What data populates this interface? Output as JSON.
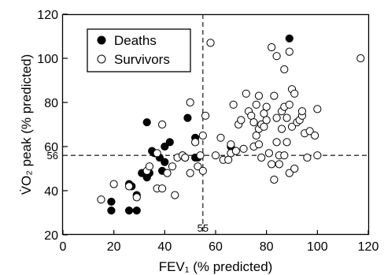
{
  "chart_data": {
    "type": "scatter",
    "title": "",
    "xlabel": "FEV₁ (% predicted)",
    "ylabel": "V̇O₂ peak (% predicted)",
    "xlim": [
      0,
      120
    ],
    "ylim": [
      20,
      120
    ],
    "xticks": [
      "0",
      "20",
      "40",
      "60",
      "80",
      "100",
      "120"
    ],
    "yticks": [
      "20",
      "40",
      "60",
      "80",
      "100",
      "120"
    ],
    "grid": false,
    "legend": "top-left",
    "reference_lines": {
      "vertical": {
        "x": 55,
        "label": "55"
      },
      "horizontal": {
        "y": 56,
        "label": "56"
      }
    },
    "series": [
      {
        "name": "Deaths",
        "marker": "filled-circle",
        "color": "#000000",
        "points": [
          [
            19,
            31
          ],
          [
            19,
            35
          ],
          [
            26,
            31
          ],
          [
            26,
            43
          ],
          [
            27,
            42
          ],
          [
            29,
            31
          ],
          [
            29,
            38
          ],
          [
            31,
            48
          ],
          [
            33,
            46
          ],
          [
            34,
            48
          ],
          [
            33,
            71
          ],
          [
            35,
            58
          ],
          [
            36,
            57
          ],
          [
            38,
            55
          ],
          [
            39,
            49
          ],
          [
            40,
            53
          ],
          [
            40,
            60
          ],
          [
            42,
            62
          ],
          [
            47,
            56
          ],
          [
            48,
            55
          ],
          [
            49,
            73
          ],
          [
            52,
            55
          ],
          [
            52,
            64
          ],
          [
            53,
            55
          ],
          [
            66,
            60
          ],
          [
            89,
            109
          ]
        ]
      },
      {
        "name": "Survivors",
        "marker": "open-circle",
        "color": "#000000",
        "points": [
          [
            15,
            36
          ],
          [
            20,
            43
          ],
          [
            26,
            42
          ],
          [
            29,
            37
          ],
          [
            33,
            49
          ],
          [
            34,
            51
          ],
          [
            37,
            57
          ],
          [
            37,
            41
          ],
          [
            39,
            41
          ],
          [
            39,
            70
          ],
          [
            41,
            48
          ],
          [
            43,
            51
          ],
          [
            44,
            38
          ],
          [
            45,
            55
          ],
          [
            47,
            56
          ],
          [
            48,
            55
          ],
          [
            50,
            48
          ],
          [
            50,
            80
          ],
          [
            52,
            62
          ],
          [
            53,
            51
          ],
          [
            54,
            56
          ],
          [
            55,
            49
          ],
          [
            55,
            65
          ],
          [
            56,
            74
          ],
          [
            58,
            107
          ],
          [
            60,
            56
          ],
          [
            62,
            64
          ],
          [
            63,
            54
          ],
          [
            65,
            54
          ],
          [
            66,
            57
          ],
          [
            66,
            61
          ],
          [
            67,
            79
          ],
          [
            68,
            58
          ],
          [
            69,
            70
          ],
          [
            70,
            72
          ],
          [
            71,
            59
          ],
          [
            72,
            84
          ],
          [
            73,
            76
          ],
          [
            74,
            74
          ],
          [
            75,
            60
          ],
          [
            75,
            71
          ],
          [
            76,
            65
          ],
          [
            76,
            79
          ],
          [
            77,
            61
          ],
          [
            77,
            68
          ],
          [
            77,
            83
          ],
          [
            78,
            70
          ],
          [
            78,
            55
          ],
          [
            79,
            69
          ],
          [
            79,
            75
          ],
          [
            80,
            72
          ],
          [
            80,
            78
          ],
          [
            81,
            57
          ],
          [
            82,
            52
          ],
          [
            82,
            105
          ],
          [
            83,
            45
          ],
          [
            83,
            83
          ],
          [
            84,
            62
          ],
          [
            84,
            101
          ],
          [
            84,
            73
          ],
          [
            85,
            52
          ],
          [
            85,
            56
          ],
          [
            86,
            68
          ],
          [
            86,
            76
          ],
          [
            87,
            78
          ],
          [
            87,
            95
          ],
          [
            87,
            56
          ],
          [
            88,
            62
          ],
          [
            88,
            73
          ],
          [
            89,
            79
          ],
          [
            89,
            48
          ],
          [
            89,
            103
          ],
          [
            90,
            86
          ],
          [
            90,
            69
          ],
          [
            91,
            50
          ],
          [
            91,
            84
          ],
          [
            92,
            71
          ],
          [
            93,
            72
          ],
          [
            94,
            74
          ],
          [
            94,
            76
          ],
          [
            95,
            66
          ],
          [
            96,
            55
          ],
          [
            97,
            67
          ],
          [
            99,
            65
          ],
          [
            100,
            56
          ],
          [
            100,
            77
          ],
          [
            117,
            100
          ]
        ]
      }
    ]
  }
}
